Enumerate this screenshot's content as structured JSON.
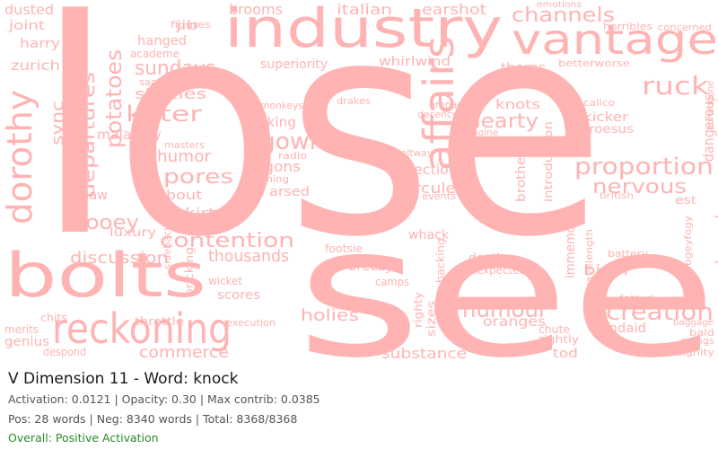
{
  "caption": {
    "title": "V Dimension 11 - Word: knock",
    "stats": "Activation: 0.0121 | Opacity: 0.30 | Max contrib: 0.0385",
    "counts": "Pos: 28 words | Neg: 8340 words | Total: 8368/8368",
    "verdict": "Overall: Positive Activation"
  },
  "colors": {
    "word": "#ffb3b3",
    "background": "#ffffff",
    "verdict": "#2a8a2a"
  },
  "words": {
    "lose": "lose",
    "see": "see",
    "industry": "industry",
    "vantage": "vantage",
    "bolts": "bolts",
    "reckoning": "reckoning",
    "affairs": "affairs",
    "dorothy": "dorothy",
    "proportion": "proportion",
    "humour": "humour",
    "creation": "creation",
    "gowk": "gowk",
    "hearty": "hearty",
    "channels": "channels",
    "ruck": "ruck",
    "kilter": "kilter",
    "sundays": "sundays",
    "potatoes": "potatoes",
    "departures": "departures",
    "contention": "contention",
    "pores": "pores",
    "nervous": "nervous",
    "hercules": "hercules",
    "hooey": "hooey",
    "discussion": "discussion",
    "thousands": "thousands",
    "commerce": "commerce",
    "holies": "holies",
    "substance": "substance",
    "oranges": "oranges",
    "brooms": "brooms",
    "italian": "italian",
    "earshot": "earshot",
    "dusted": "dusted",
    "joint": "joint",
    "harry": "harry",
    "zurich": "zurich",
    "sync": "sync",
    "opinions": "opinions",
    "skittles": "skittles",
    "malarkey": "malarkey",
    "humor": "humor",
    "wagons": "wagons",
    "arsed": "arsed",
    "bout": "bout",
    "skirt": "skirt",
    "luxury": "luxury",
    "haw": "haw",
    "correction": "correction",
    "brotherly": "brotherly",
    "introduction": "introduction",
    "immemorial": "immemorial",
    "damocles": "damocles",
    "dangerous": "dangerous",
    "approval": "approval",
    "buriedgone": "buriedgone",
    "fogeyfogy": "fogeyfogy",
    "birth": "birth",
    "bandaid": "bandaid",
    "depth": "depth",
    "unexpected": "unexpected",
    "breezy": "breezy",
    "whack": "whack",
    "scores": "scores",
    "rightly": "rightly",
    "tod": "tod",
    "chute": "chute",
    "fatted": "fatted",
    "genius": "genius",
    "merits": "merits",
    "kicker": "kicker",
    "croesus": "croesus",
    "angels": "angels",
    "thorns": "thorns",
    "betterworse": "betterworse",
    "whirlwind": "whirlwind",
    "superiority": "superiority",
    "kin": "kin",
    "pecking": "pecking",
    "knots": "knots",
    "jib": "jib",
    "hanged": "hanged",
    "academe": "academe",
    "figures": "figures",
    "emotions": "emotions",
    "calico": "calico",
    "grenade": "grenade",
    "bricking": "bricking",
    "sizes": "sizes",
    "righty": "righty",
    "hacking": "hacking",
    "wavelength": "wavelength",
    "battery": "battery",
    "dumper": "dumper",
    "camps": "camps",
    "sideback": "sideback",
    "throttle": "throttle",
    "execution": "execution",
    "concerned": "concerned",
    "despond": "despond",
    "chits": "chits",
    "wicket": "wicket",
    "sanctity": "sanctity",
    "horribles": "horribles",
    "goings": "goings",
    "dignity": "dignity",
    "baggage": "baggage",
    "bald": "bald",
    "footsie": "footsie",
    "crashing": "crashing",
    "superiority2": "masters",
    "decency": "decency",
    "monkeys": "monkeys",
    "drakes": "drakes",
    "radio": "radio",
    "events": "events",
    "beltway": "beltway",
    "imagine": "imagine",
    "british": "british",
    "est": "est"
  }
}
